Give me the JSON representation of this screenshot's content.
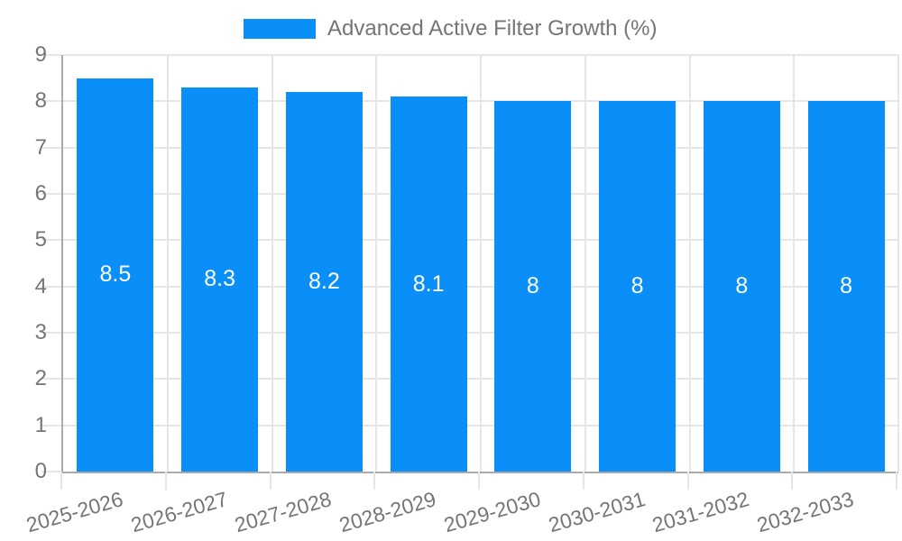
{
  "chart_data": {
    "type": "bar",
    "legend": "Advanced Active Filter Growth (%)",
    "categories": [
      "2025-2026",
      "2026-2027",
      "2027-2028",
      "2028-2029",
      "2029-2030",
      "2030-2031",
      "2031-2032",
      "2032-2033"
    ],
    "values": [
      8.5,
      8.3,
      8.2,
      8.1,
      8,
      8,
      8,
      8
    ],
    "xlabel": "",
    "ylabel": "",
    "ylim": [
      0,
      9
    ],
    "yticks": [
      0,
      1,
      2,
      3,
      4,
      5,
      6,
      7,
      8,
      9
    ],
    "grid": true,
    "legend_position": "top-center",
    "x_label_rotation_deg": -16,
    "colors": {
      "bar": "#0A8FF8",
      "bar_value_label": "#ffffff",
      "axis_text": "#757575",
      "grid_line": "#e6e6e6",
      "axis_line": "#aaaaaa",
      "background": "#ffffff"
    }
  }
}
